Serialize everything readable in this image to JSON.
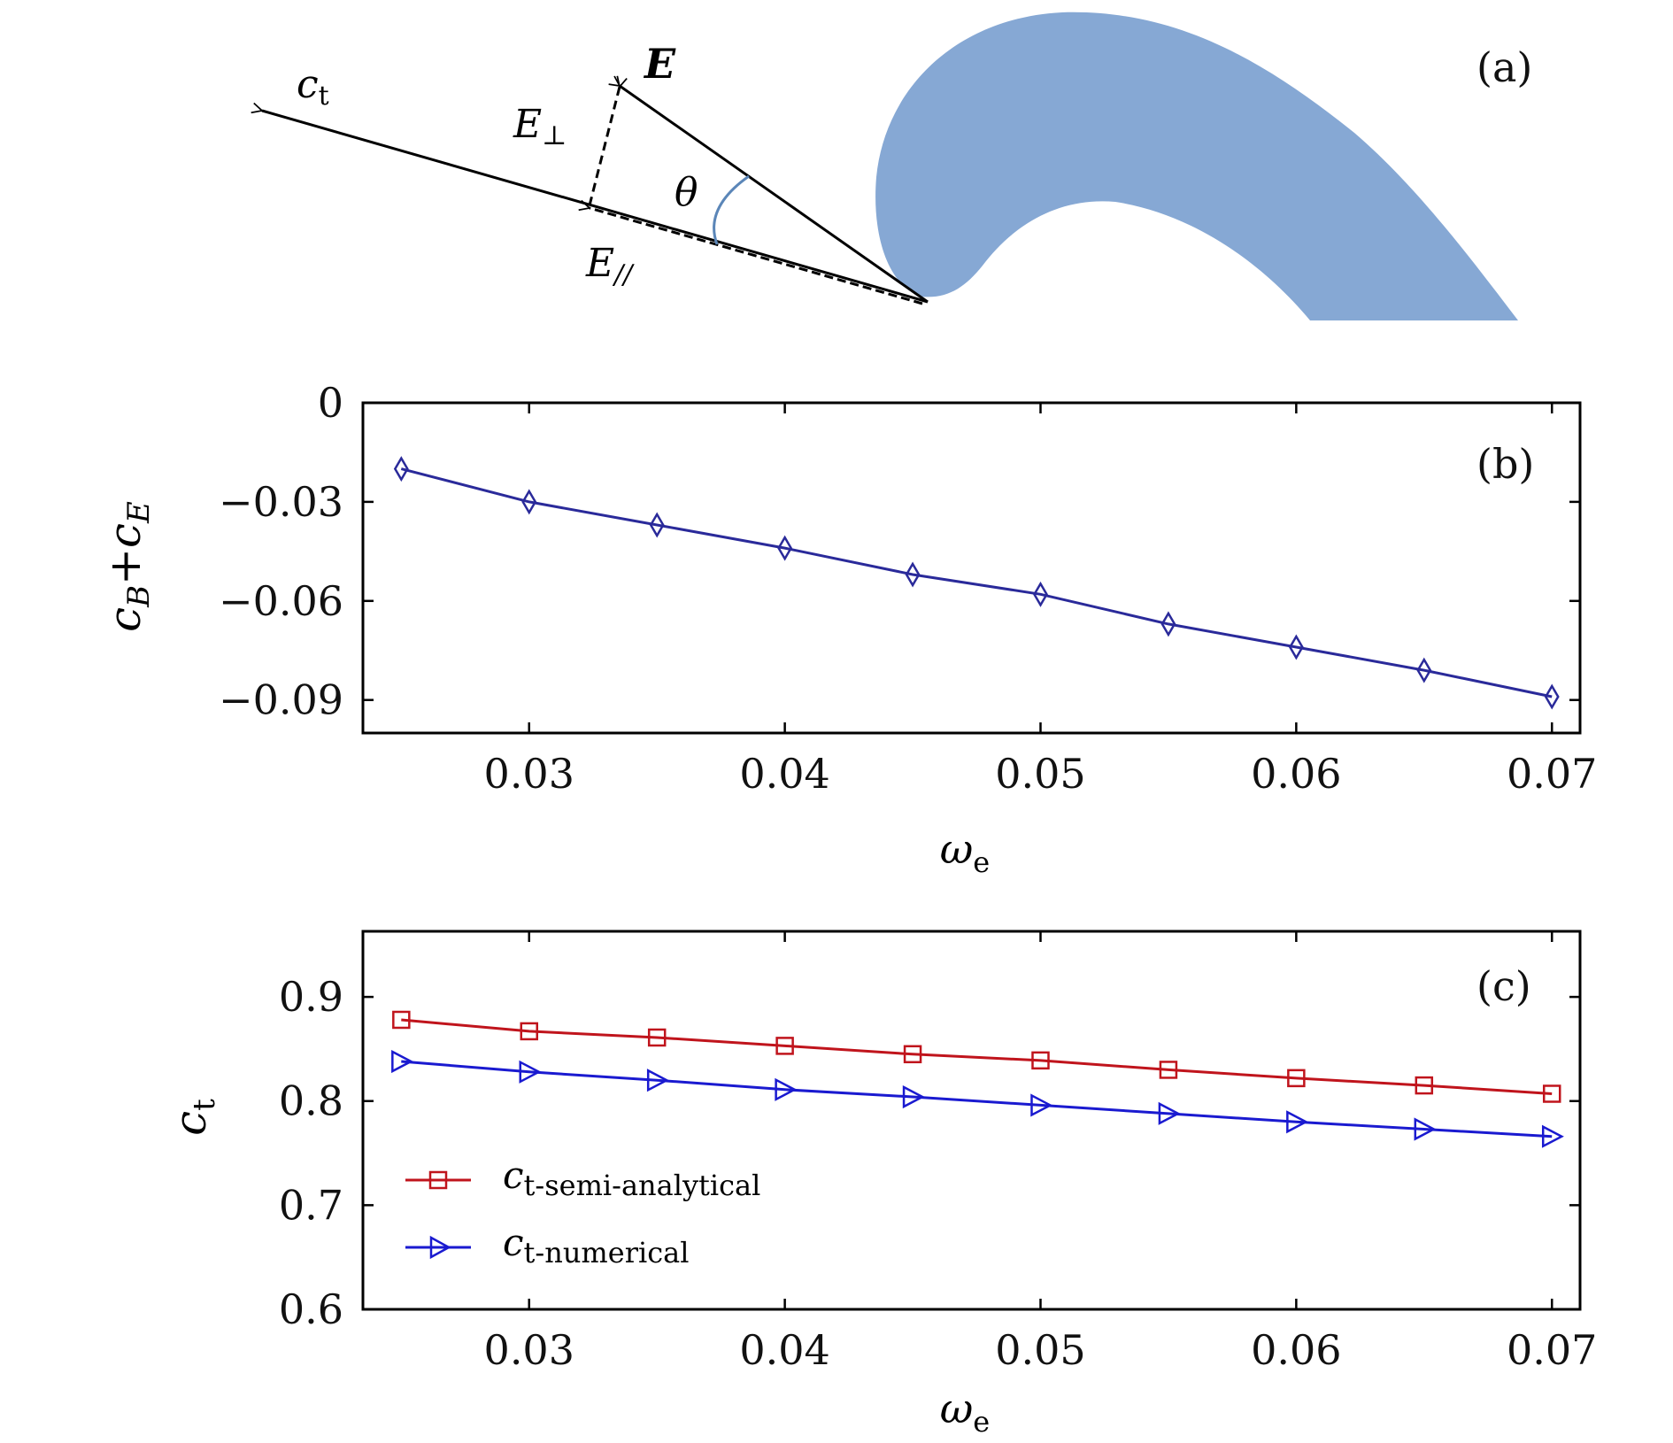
{
  "figure": {
    "panels": [
      "(a)",
      "(b)",
      "(c)"
    ]
  },
  "schematic": {
    "labels": {
      "ct": "c",
      "ct_sub": "t",
      "E": "E",
      "E_perp": "E",
      "E_perp_sub": "⊥",
      "E_par": "E",
      "E_par_sub": "//",
      "theta": "θ"
    },
    "colors": {
      "shape": "#86a8d4",
      "arrow": "#000000",
      "arc": "#5b86b8"
    }
  },
  "chart_data": [
    {
      "type": "line",
      "panel": "(b)",
      "x": [
        0.025,
        0.03,
        0.035,
        0.04,
        0.045,
        0.05,
        0.055,
        0.06,
        0.065,
        0.07
      ],
      "series": [
        {
          "values": [
            -0.02,
            -0.03,
            -0.037,
            -0.044,
            -0.052,
            -0.058,
            -0.067,
            -0.074,
            -0.081,
            -0.089
          ],
          "color": "#2a2a9a",
          "marker": "diamond"
        }
      ],
      "xlabel": "ω",
      "xlabel_sub": "e",
      "ylabel": "c",
      "ylabel_sub1": "B",
      "ylabel_mid": "+c",
      "ylabel_sub2": "E",
      "xlim": [
        0.0235,
        0.0711
      ],
      "ylim": [
        -0.1,
        0.0
      ],
      "xticks": [
        0.03,
        0.04,
        0.05,
        0.06,
        0.07
      ],
      "xtick_labels": [
        "0.03",
        "0.04",
        "0.05",
        "0.06",
        "0.07"
      ],
      "yticks": [
        0,
        -0.03,
        -0.06,
        -0.09
      ],
      "ytick_labels": [
        "0",
        "−0.03",
        "−0.06",
        "−0.09"
      ],
      "grid": false
    },
    {
      "type": "line",
      "panel": "(c)",
      "x": [
        0.025,
        0.03,
        0.035,
        0.04,
        0.045,
        0.05,
        0.055,
        0.06,
        0.065,
        0.07
      ],
      "series": [
        {
          "name": "c",
          "name_sub": "t-semi-analytical",
          "values": [
            0.878,
            0.867,
            0.861,
            0.853,
            0.845,
            0.839,
            0.83,
            0.822,
            0.815,
            0.807
          ],
          "color": "#c0141c",
          "marker": "square"
        },
        {
          "name": "c",
          "name_sub": "t-numerical",
          "values": [
            0.838,
            0.828,
            0.82,
            0.811,
            0.804,
            0.796,
            0.788,
            0.78,
            0.773,
            0.766
          ],
          "color": "#1a1ad0",
          "marker": "triangle-right"
        }
      ],
      "xlabel": "ω",
      "xlabel_sub": "e",
      "ylabel": "c",
      "ylabel_sub": "t",
      "xlim": [
        0.0235,
        0.0711
      ],
      "ylim": [
        0.6,
        0.963
      ],
      "xticks": [
        0.03,
        0.04,
        0.05,
        0.06,
        0.07
      ],
      "xtick_labels": [
        "0.03",
        "0.04",
        "0.05",
        "0.06",
        "0.07"
      ],
      "yticks": [
        0.6,
        0.7,
        0.8,
        0.9
      ],
      "ytick_labels": [
        "0.6",
        "0.7",
        "0.8",
        "0.9"
      ],
      "legend": "bottom-left",
      "grid": false
    }
  ]
}
